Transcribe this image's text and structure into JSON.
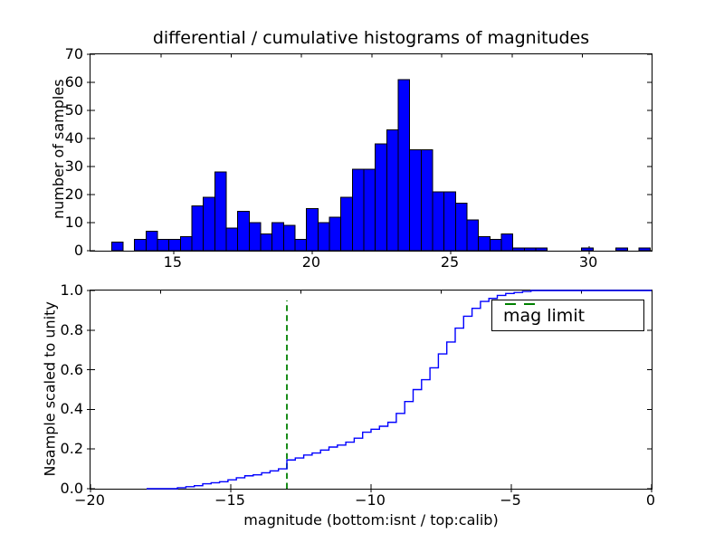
{
  "figure": {
    "title": "differential / cumulative histograms of magnitudes",
    "background": "#ffffff"
  },
  "chart_data": [
    {
      "type": "bar",
      "subplot": "top-differential-histogram",
      "title": "differential / cumulative histograms of magnitudes",
      "xlabel": "",
      "ylabel": "number of samples",
      "xlim": [
        12,
        32.25
      ],
      "ylim": [
        0,
        70
      ],
      "grid": false,
      "xticks": {
        "values": [
          15,
          20,
          25,
          30
        ],
        "labels": [
          "15",
          "20",
          "25",
          "30"
        ]
      },
      "yticks": {
        "values": [
          0,
          10,
          20,
          30,
          40,
          50,
          60,
          70
        ],
        "labels": [
          "0",
          "10",
          "20",
          "30",
          "40",
          "50",
          "60",
          "70"
        ]
      },
      "top_spine_minor_ticks": [
        14.54,
        17.08,
        19.61,
        22.15,
        24.68,
        27.22,
        29.75
      ],
      "hist": {
        "bin_start": 12.76,
        "bin_width": 0.4138,
        "heights": [
          3,
          0,
          4,
          7,
          4,
          4,
          5,
          16,
          19,
          28,
          8,
          14,
          10,
          6,
          10,
          9,
          4,
          15,
          10,
          12,
          19,
          29,
          29,
          38,
          43,
          61,
          36,
          36,
          21,
          21,
          17,
          11,
          5,
          4,
          6,
          1,
          1,
          1,
          0,
          0,
          0,
          1,
          0,
          0,
          1,
          0,
          1
        ]
      },
      "bar_color": "#0000ff",
      "bar_edge_color": "#000000"
    },
    {
      "type": "line",
      "subplot": "bottom-cumulative-histogram",
      "xlabel": "magnitude (bottom:isnt / top:calib)",
      "ylabel": "Nsample scaled to unity",
      "xlim": [
        -20,
        0
      ],
      "ylim": [
        0.0,
        1.0
      ],
      "grid": false,
      "xticks": {
        "values": [
          -20,
          -15,
          -10,
          -5,
          0
        ],
        "labels": [
          "−20",
          "−15",
          "−10",
          "−5",
          "0"
        ]
      },
      "yticks": {
        "values": [
          0.0,
          0.2,
          0.4,
          0.6,
          0.8,
          1.0
        ],
        "labels": [
          "0.0",
          "0.2",
          "0.4",
          "0.6",
          "0.8",
          "1.0"
        ]
      },
      "top_spine_minor_ticks": [
        -17.5,
        -12.5,
        -7.5,
        -2.5
      ],
      "line_color": "#0000ff",
      "cumulative_step": {
        "x": [
          -18.0,
          -16.9,
          -16.6,
          -16.3,
          -16.0,
          -15.7,
          -15.4,
          -15.1,
          -14.8,
          -14.5,
          -14.2,
          -13.9,
          -13.6,
          -13.3,
          -13.0,
          -12.7,
          -12.4,
          -12.1,
          -11.8,
          -11.5,
          -11.2,
          -10.9,
          -10.6,
          -10.3,
          -10.0,
          -9.7,
          -9.4,
          -9.1,
          -8.8,
          -8.5,
          -8.2,
          -7.9,
          -7.6,
          -7.3,
          -7.0,
          -6.7,
          -6.4,
          -6.1,
          -5.8,
          -5.5,
          -5.2,
          -4.9,
          -4.6,
          -4.3,
          -0.7
        ],
        "y": [
          0,
          0.005,
          0.01,
          0.015,
          0.025,
          0.03,
          0.035,
          0.045,
          0.055,
          0.065,
          0.07,
          0.08,
          0.09,
          0.1,
          0.145,
          0.155,
          0.17,
          0.18,
          0.195,
          0.21,
          0.22,
          0.235,
          0.255,
          0.285,
          0.3,
          0.315,
          0.335,
          0.38,
          0.44,
          0.5,
          0.55,
          0.61,
          0.68,
          0.74,
          0.81,
          0.87,
          0.91,
          0.945,
          0.96,
          0.975,
          0.985,
          0.99,
          0.995,
          1.0,
          1.0
        ]
      },
      "mag_limit_line": {
        "x": -13,
        "color": "#008000",
        "style": "dashed"
      },
      "legend": {
        "position": "upper right",
        "entries": [
          {
            "label": "mag limit",
            "color": "#008000",
            "style": "dashed"
          }
        ]
      }
    }
  ]
}
